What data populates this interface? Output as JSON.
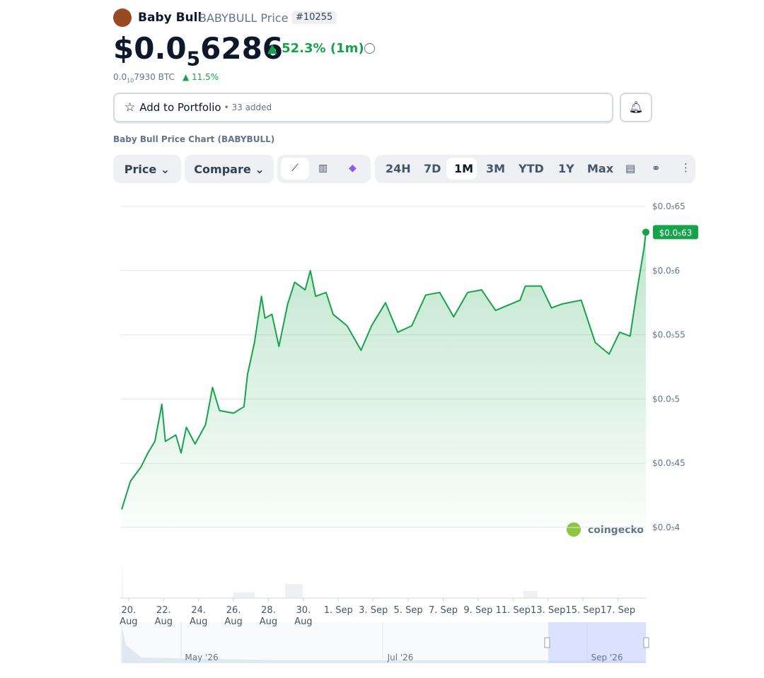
{
  "header": {
    "name": "Baby Bull",
    "symbol": "BABYBULL Price",
    "rank": "#10255",
    "price_prefix": "$0.0",
    "price_zeros": "5",
    "price_digits": "6286",
    "change": "52.3% (1m)",
    "btc_prefix": "0.0",
    "btc_zeros": "10",
    "btc_digits": "7930 BTC",
    "btc_change": "11.5%"
  },
  "portfolio": {
    "button": "Add to Portfolio",
    "added": "• 33 added"
  },
  "chart_title": "Baby Bull Price Chart (BABYBULL)",
  "controls": {
    "price": "Price",
    "compare": "Compare",
    "ranges": [
      "24H",
      "7D",
      "1M",
      "3M",
      "YTD",
      "1Y",
      "Max"
    ],
    "active_range": "1M"
  },
  "watermark": "coingecko",
  "navigator": {
    "labels": [
      "May '26",
      "Jul '26",
      "Sep '26"
    ]
  },
  "chart_data": {
    "type": "line",
    "color": "#16a34a",
    "grid": true,
    "x": [
      19.6,
      20.1,
      20.7,
      21.1,
      21.5,
      21.9,
      22.1,
      22.7,
      23.0,
      23.3,
      23.8,
      24.4,
      24.8,
      25.2,
      26.0,
      26.6,
      26.8,
      27.2,
      27.6,
      27.8,
      28.2,
      28.6,
      29.1,
      29.5,
      30.1,
      30.4,
      30.7,
      31.3,
      31.7,
      32.5,
      33.3,
      33.9,
      34.7,
      35.4,
      36.2,
      37.0,
      37.8,
      38.6,
      39.4,
      40.2,
      41.0,
      42.4,
      42.7,
      43.6,
      44.2,
      44.8,
      45.9,
      46.7,
      47.5,
      48.1,
      48.7,
      49.1,
      49.5,
      49.6
    ],
    "values": [
      4.14e-06,
      4.36e-06,
      4.47e-06,
      4.58e-06,
      4.67e-06,
      4.96e-06,
      4.67e-06,
      4.72e-06,
      4.58e-06,
      4.78e-06,
      4.65e-06,
      4.8e-06,
      5.09e-06,
      4.91e-06,
      4.89e-06,
      4.94e-06,
      5.19e-06,
      5.44e-06,
      5.8e-06,
      5.63e-06,
      5.66e-06,
      5.41e-06,
      5.74e-06,
      5.91e-06,
      5.85e-06,
      6e-06,
      5.8e-06,
      5.83e-06,
      5.66e-06,
      5.57e-06,
      5.38e-06,
      5.57e-06,
      5.75e-06,
      5.52e-06,
      5.57e-06,
      5.81e-06,
      5.83e-06,
      5.64e-06,
      5.83e-06,
      5.85e-06,
      5.69e-06,
      5.77e-06,
      5.88e-06,
      5.88e-06,
      5.71e-06,
      5.74e-06,
      5.77e-06,
      5.44e-06,
      5.35e-06,
      5.52e-06,
      5.49e-06,
      5.85e-06,
      6.18e-06,
      6.3e-06
    ],
    "value_labels": [
      null,
      null,
      null,
      null,
      null,
      null,
      null,
      null,
      null,
      null,
      null,
      null,
      null,
      null,
      null,
      null,
      null,
      null,
      null,
      null,
      null,
      null,
      null,
      null,
      null,
      null,
      null,
      null,
      null,
      null,
      null,
      null,
      null,
      null,
      null,
      null,
      null,
      null,
      null,
      null,
      null,
      null,
      null,
      null,
      null,
      null,
      null,
      null,
      null,
      null,
      null,
      null,
      null,
      "$0.0₅63"
    ],
    "xlim": [
      19.6,
      49.6
    ],
    "xticks": [
      {
        "value": 20,
        "label": "20. Aug"
      },
      {
        "value": 22,
        "label": "22. Aug"
      },
      {
        "value": 24,
        "label": "24. Aug"
      },
      {
        "value": 26,
        "label": "26. Aug"
      },
      {
        "value": 28,
        "label": "28. Aug"
      },
      {
        "value": 30,
        "label": "30. Aug"
      },
      {
        "value": 32,
        "label": "1. Sep"
      },
      {
        "value": 34,
        "label": "3. Sep"
      },
      {
        "value": 36,
        "label": "5. Sep"
      },
      {
        "value": 38,
        "label": "7. Sep"
      },
      {
        "value": 40,
        "label": "9. Sep"
      },
      {
        "value": 42,
        "label": "11. Sep"
      },
      {
        "value": 44,
        "label": "13. Sep"
      },
      {
        "value": 46,
        "label": "15. Sep"
      },
      {
        "value": 48,
        "label": "17. Sep"
      }
    ],
    "ylim": [
      4e-06,
      6.5e-06
    ],
    "yticks": [
      {
        "value": 4e-06,
        "label": "$0.0₅4"
      },
      {
        "value": 4.5e-06,
        "label": "$0.0₅45"
      },
      {
        "value": 5e-06,
        "label": "$0.0₅5"
      },
      {
        "value": 5.5e-06,
        "label": "$0.0₅55"
      },
      {
        "value": 6e-06,
        "label": "$0.0₅6"
      },
      {
        "value": 6.5e-06,
        "label": "$0.0₅65"
      }
    ]
  }
}
